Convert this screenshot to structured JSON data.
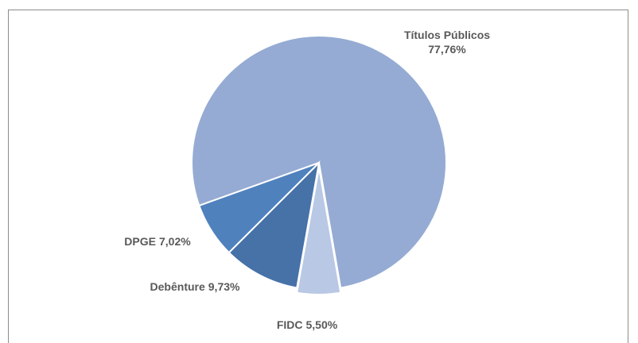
{
  "chart_data": {
    "type": "pie",
    "categories": [
      "Títulos Públicos",
      "FIDC",
      "Debênture",
      "DPGE"
    ],
    "values": [
      77.76,
      5.5,
      9.73,
      7.02
    ],
    "value_labels": [
      "77,76%",
      "5,50%",
      "9,73%",
      "7,02%"
    ],
    "colors": [
      "#95abd3",
      "#b9c8e4",
      "#4672a8",
      "#4f81bd"
    ]
  }
}
